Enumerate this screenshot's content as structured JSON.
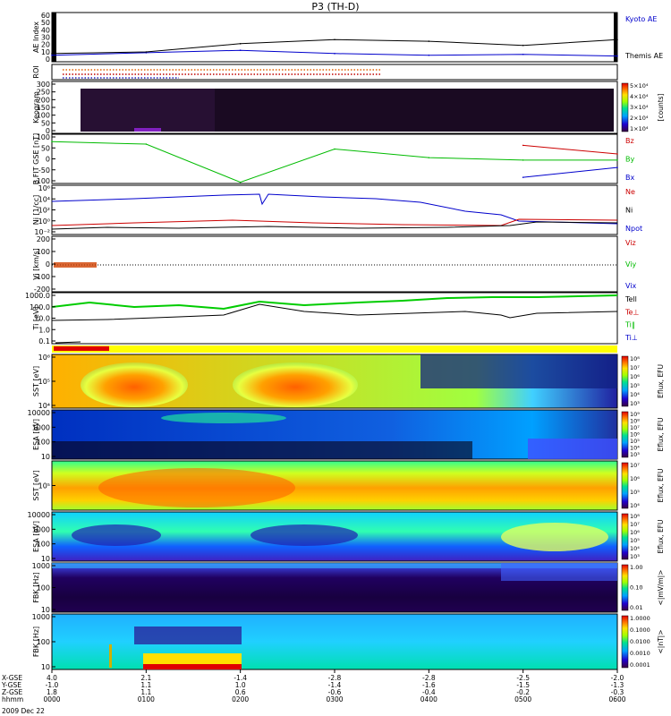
{
  "title": "P3 (TH-D)",
  "footer": {
    "rows": [
      {
        "label": "X-GSE",
        "values": [
          "4.0",
          "2.1",
          "-1.4",
          "-2.8",
          "-2.8",
          "-2.5",
          "-2.0"
        ]
      },
      {
        "label": "Y-GSE",
        "values": [
          "-1.0",
          "1.1",
          "1.0",
          "-1.4",
          "-1.6",
          "-1.5",
          "-1.3"
        ]
      },
      {
        "label": "Z-GSE",
        "values": [
          "1.8",
          "1.1",
          "0.6",
          "-0.6",
          "-0.4",
          "-0.2",
          "-0.3"
        ]
      },
      {
        "label": "hhmm",
        "values": [
          "0000",
          "0100",
          "0200",
          "0300",
          "0400",
          "0500",
          "0600"
        ]
      }
    ],
    "date": "2009 Dec 22"
  },
  "chart_data": [
    {
      "id": "ae",
      "type": "line",
      "ylabel": "AE Index",
      "yticks": [
        "60",
        "50",
        "40",
        "30",
        "20",
        "10",
        "0"
      ],
      "ylim": [
        0,
        60
      ],
      "x": [
        "0000",
        "0100",
        "0200",
        "0300",
        "0400",
        "0500",
        "0600"
      ],
      "series": [
        {
          "name": "Kyoto AE",
          "color": "#0000cc",
          "values": [
            8,
            11,
            14,
            10,
            8,
            9,
            7
          ]
        },
        {
          "name": "Themis AE",
          "color": "#000000",
          "values": [
            10,
            12,
            22,
            27,
            25,
            20,
            27
          ]
        }
      ]
    },
    {
      "id": "roi",
      "type": "table",
      "ylabel": "ROI"
    },
    {
      "id": "keogram",
      "type": "heatmap",
      "ylabel": "Keogram",
      "yticks": [
        "300",
        "250",
        "200",
        "150",
        "100",
        "50",
        "0"
      ],
      "colorbar": {
        "label": "[counts]",
        "ticks": [
          "5×10⁴",
          "4×10⁴",
          "3×10⁴",
          "2×10⁴",
          "1×10⁴"
        ]
      }
    },
    {
      "id": "bfield",
      "type": "line",
      "ylabel": "B FIT GSE [nT]",
      "yticks": [
        "100",
        "50",
        "0",
        "-50",
        "-100"
      ],
      "ylim": [
        -100,
        100
      ],
      "x": [
        "0000",
        "0100",
        "0200",
        "0300",
        "0400",
        "0500",
        "0600"
      ],
      "series": [
        {
          "name": "Bz",
          "color": "#cc0000",
          "values": [
            null,
            null,
            null,
            null,
            null,
            55,
            20
          ]
        },
        {
          "name": "By",
          "color": "#00bb00",
          "values": [
            70,
            60,
            -95,
            40,
            5,
            -5,
            -5
          ]
        },
        {
          "name": "Bx",
          "color": "#0000cc",
          "values": [
            null,
            null,
            null,
            null,
            null,
            -75,
            -35
          ]
        }
      ]
    },
    {
      "id": "density",
      "type": "line",
      "ylabel": "Ni [1/cc]",
      "yticks": [
        "10⁶",
        "10⁴",
        "10²",
        "10⁰",
        "10⁻²"
      ],
      "series": [
        {
          "name": "Ne",
          "color": "#cc0000"
        },
        {
          "name": "Ni",
          "color": "#000000"
        },
        {
          "name": "Npot",
          "color": "#0000cc"
        }
      ]
    },
    {
      "id": "velocity",
      "type": "line",
      "ylabel": "Vi [km/s]",
      "yticks": [
        "200",
        "100",
        "0",
        "-100",
        "-200"
      ],
      "ylim": [
        -200,
        200
      ],
      "series": [
        {
          "name": "Viz",
          "color": "#cc0000"
        },
        {
          "name": "Viy",
          "color": "#00bb00"
        },
        {
          "name": "Vix",
          "color": "#0000cc"
        }
      ]
    },
    {
      "id": "temp",
      "type": "line",
      "ylabel": "Ti [eV]",
      "yticks": [
        "1000.0",
        "100.0",
        "10.0",
        "1.0",
        "0.1"
      ],
      "series": [
        {
          "name": "Tell",
          "color": "#000000"
        },
        {
          "name": "Te⊥",
          "color": "#cc0000"
        },
        {
          "name": "Ti‖",
          "color": "#00bb00"
        },
        {
          "name": "Ti⊥",
          "color": "#0000cc"
        }
      ]
    },
    {
      "id": "sst_e",
      "type": "heatmap",
      "ylabel": "SST [eV]",
      "yticks": [
        "10⁶",
        "10⁵",
        "10⁴"
      ],
      "colorbar": {
        "label": "Eflux, EFU",
        "ticks": [
          "10⁸",
          "10⁷",
          "10⁶",
          "10⁵",
          "10⁴",
          "10³"
        ]
      }
    },
    {
      "id": "esa_e",
      "type": "heatmap",
      "ylabel": "ESA [eV]",
      "yticks": [
        "10000",
        "1000",
        "100",
        "10"
      ],
      "colorbar": {
        "label": "Eflux, EFU",
        "ticks": [
          "10⁹",
          "10⁸",
          "10⁷",
          "10⁶",
          "10⁵",
          "10⁴",
          "10³"
        ]
      }
    },
    {
      "id": "sst_i",
      "type": "heatmap",
      "ylabel": "SST [eV]",
      "yticks": [
        "10⁵"
      ],
      "colorbar": {
        "label": "Eflux, EFU",
        "ticks": [
          "10⁷",
          "10⁶",
          "10⁵",
          "10⁴"
        ]
      }
    },
    {
      "id": "esa_i",
      "type": "heatmap",
      "ylabel": "ESA [eV]",
      "yticks": [
        "10000",
        "1000",
        "100",
        "10"
      ],
      "colorbar": {
        "label": "Eflux, EFU",
        "ticks": [
          "10⁸",
          "10⁷",
          "10⁶",
          "10⁵",
          "10⁴",
          "10³"
        ]
      }
    },
    {
      "id": "fbk1",
      "type": "heatmap",
      "ylabel": "FBK [Hz]",
      "yticks": [
        "1000",
        "100",
        "10"
      ],
      "colorbar": {
        "label": "<|mV/m|>",
        "ticks": [
          "1.00",
          "0.10",
          "0.01"
        ]
      }
    },
    {
      "id": "fbk2",
      "type": "heatmap",
      "ylabel": "FBK [Hz]",
      "yticks": [
        "1000",
        "100",
        "10"
      ],
      "colorbar": {
        "label": "<|nT|>",
        "ticks": [
          "1.0000",
          "0.1000",
          "0.0100",
          "0.0010",
          "0.0001"
        ]
      }
    }
  ]
}
